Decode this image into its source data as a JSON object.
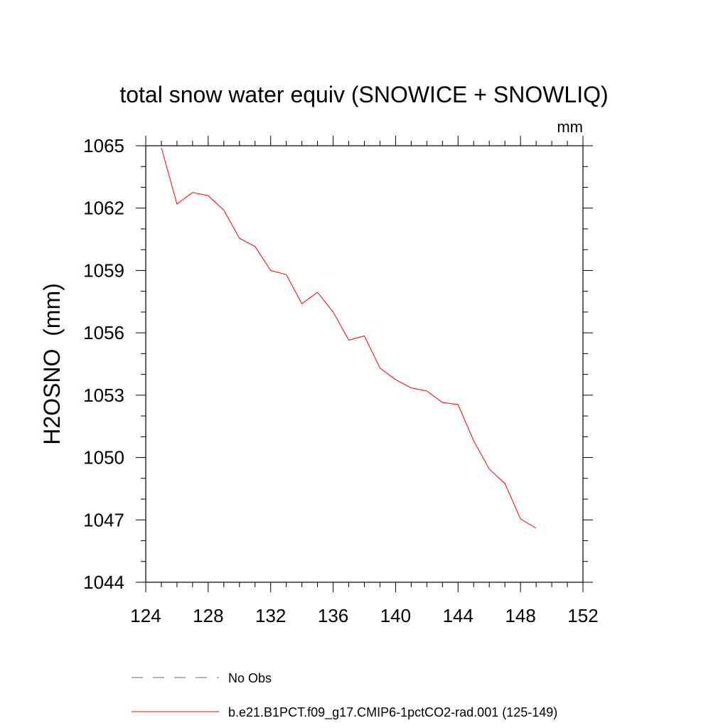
{
  "chart_data": {
    "type": "line",
    "title": "total snow water equiv (SNOWICE + SNOWLIQ)",
    "units": "mm",
    "ylabel": "H2OSNO  (mm)",
    "xlabel": "",
    "xlim": [
      124,
      152
    ],
    "ylim": [
      1044,
      1065
    ],
    "x_ticks": [
      124,
      128,
      132,
      136,
      140,
      144,
      148,
      152
    ],
    "y_ticks": [
      1044,
      1047,
      1050,
      1053,
      1056,
      1059,
      1062,
      1065
    ],
    "x_tick_labels": [
      "124",
      "128",
      "132",
      "136",
      "140",
      "144",
      "148",
      "152"
    ],
    "y_tick_labels": [
      "1044",
      "1047",
      "1050",
      "1053",
      "1056",
      "1059",
      "1062",
      "1065"
    ],
    "grid": false,
    "legend_position": "bottom",
    "series": [
      {
        "name": "b.e21.B1PCT.f09_g17.CMIP6-1pctCO2-rad.001 (125-149)",
        "color": "#ff0000",
        "style": "solid",
        "x": [
          125,
          126,
          127,
          128,
          129,
          130,
          131,
          132,
          133,
          134,
          135,
          136,
          137,
          138,
          139,
          140,
          141,
          142,
          143,
          144,
          145,
          146,
          147,
          148,
          149
        ],
        "y": [
          1064.9,
          1062.2,
          1062.75,
          1062.6,
          1061.9,
          1060.55,
          1060.15,
          1059.0,
          1058.8,
          1057.4,
          1057.95,
          1057.0,
          1055.65,
          1055.85,
          1054.3,
          1053.75,
          1053.35,
          1053.2,
          1052.65,
          1052.55,
          1050.8,
          1049.45,
          1048.75,
          1047.05,
          1046.6
        ]
      }
    ],
    "legend": [
      {
        "label": "No Obs",
        "color": "#6a5acd",
        "style": "dashed"
      },
      {
        "label": "b.e21.B1PCT.f09_g17.CMIP6-1pctCO2-rad.001 (125-149)",
        "color": "#ff0000",
        "style": "solid"
      }
    ]
  }
}
